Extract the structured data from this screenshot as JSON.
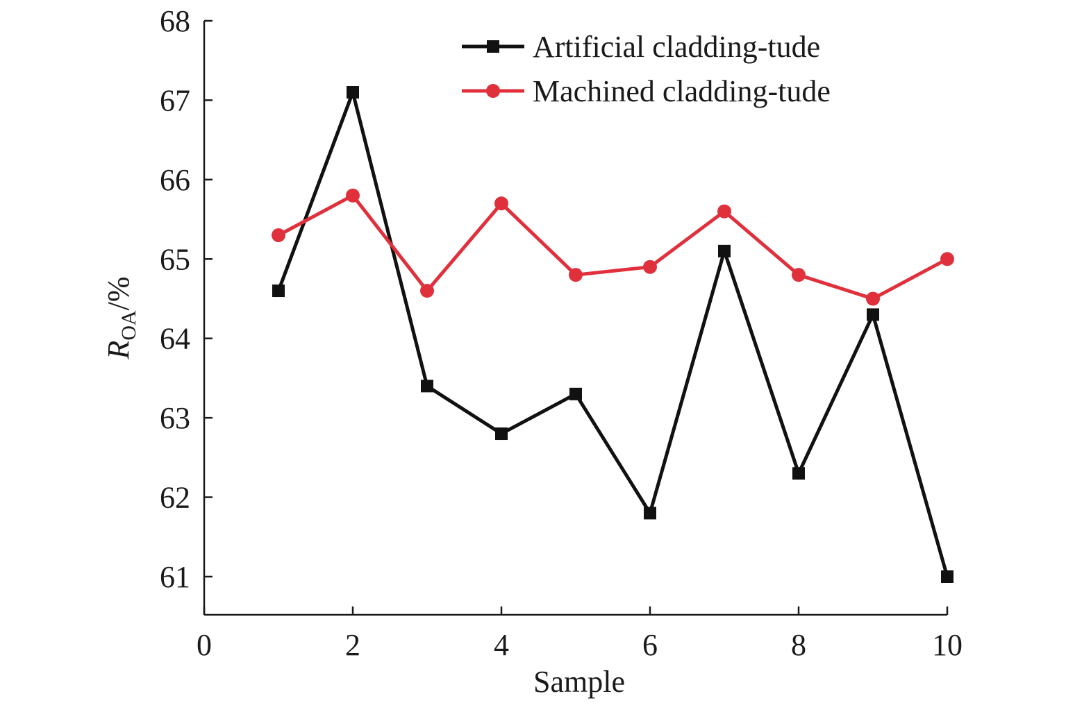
{
  "chart_data": {
    "type": "line",
    "xlabel": "Sample",
    "ylabel_main": "R",
    "ylabel_sub": "OA",
    "ylabel_unit": "/%",
    "xlim": [
      0,
      10
    ],
    "ylim": [
      60.5,
      68
    ],
    "x_ticks": [
      0,
      2,
      4,
      6,
      8,
      10
    ],
    "y_ticks": [
      61,
      62,
      63,
      64,
      65,
      66,
      67,
      68
    ],
    "grid": false,
    "legend_position": "top-right",
    "x": [
      1,
      2,
      3,
      4,
      5,
      6,
      7,
      8,
      9,
      10
    ],
    "series": [
      {
        "name": "Artificial cladding-tude",
        "color": "#111111",
        "marker": "square",
        "values": [
          64.6,
          67.1,
          63.4,
          62.8,
          63.3,
          61.8,
          65.1,
          62.3,
          64.3,
          61.0
        ]
      },
      {
        "name": "Machined cladding-tude",
        "color": "#e0303c",
        "marker": "circle",
        "values": [
          65.3,
          65.8,
          64.6,
          65.7,
          64.8,
          64.9,
          65.6,
          64.8,
          64.5,
          65.0
        ]
      }
    ]
  }
}
